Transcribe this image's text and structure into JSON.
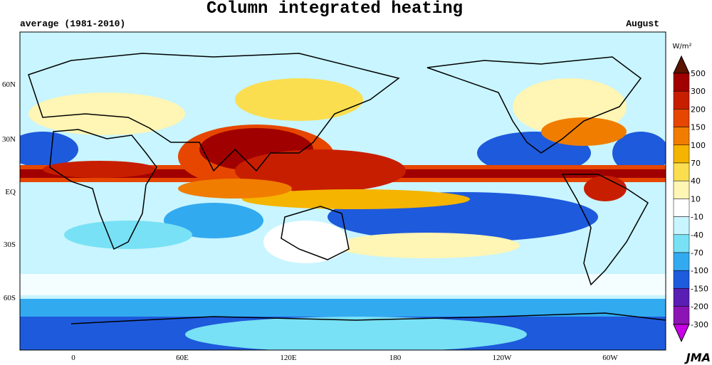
{
  "header": {
    "title": "Column integrated heating",
    "subtitle": "average (1981-2010)",
    "month": "August"
  },
  "map": {
    "lat_labels": [
      "60N",
      "30N",
      "EQ",
      "30S",
      "60S"
    ],
    "lon_labels": [
      "0",
      "60E",
      "120E",
      "180",
      "120W",
      "60W"
    ]
  },
  "colorbar": {
    "unit": "W/m²",
    "levels": [
      500,
      300,
      200,
      150,
      100,
      70,
      40,
      10,
      -10,
      -40,
      -70,
      -100,
      -150,
      -200,
      -300
    ],
    "colors": [
      "#5a1400",
      "#a00000",
      "#c81e00",
      "#e64600",
      "#f07d00",
      "#f5b400",
      "#fade50",
      "#fff5b4",
      "#ffffff",
      "#c8f5ff",
      "#78e1f5",
      "#32aaf0",
      "#1e5adc",
      "#5a1eb4",
      "#8c14b4",
      "#c800e6"
    ]
  },
  "credit": "JMA"
}
